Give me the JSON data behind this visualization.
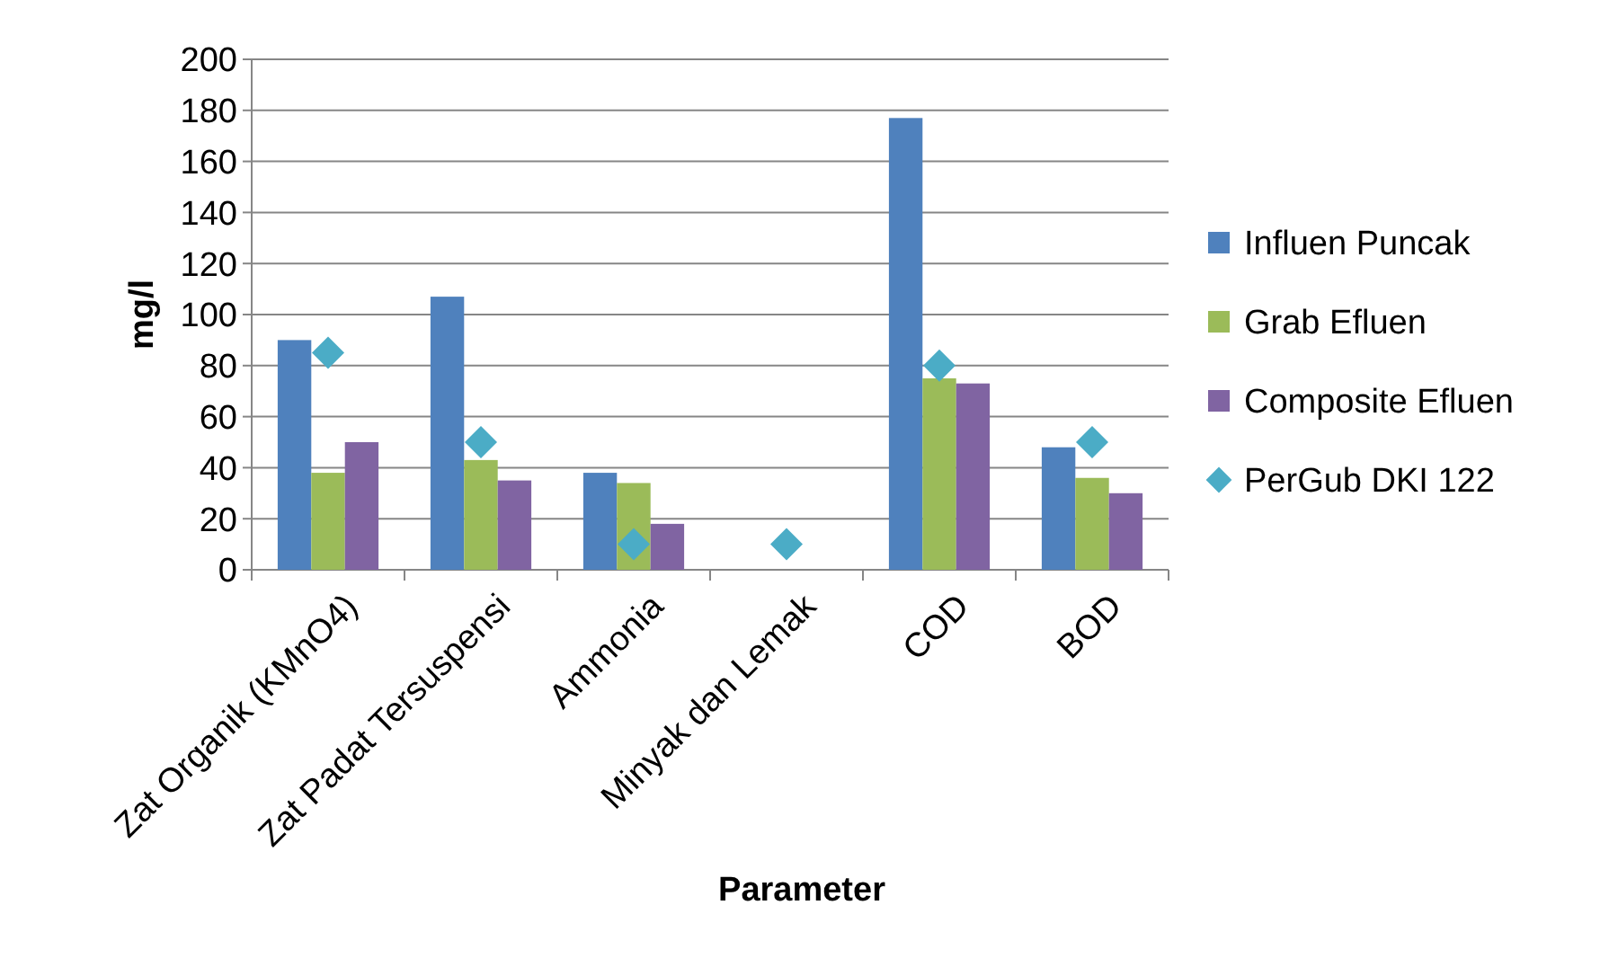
{
  "chart_data": {
    "type": "bar",
    "xlabel": "Parameter",
    "ylabel": "mg/l",
    "categories": [
      "Zat Organik (KMnO4)",
      "Zat Padat Tersuspensi",
      "Ammonia",
      "Minyak dan Lemak",
      "COD",
      "BOD"
    ],
    "series": [
      {
        "name": "Influen Puncak",
        "color": "#4f81bd",
        "values": [
          90,
          107,
          38,
          null,
          177,
          48
        ]
      },
      {
        "name": "Grab Efluen",
        "color": "#9bbb59",
        "values": [
          38,
          43,
          34,
          null,
          75,
          36
        ]
      },
      {
        "name": "Composite Efluen",
        "color": "#8064a2",
        "values": [
          50,
          35,
          18,
          null,
          73,
          30
        ]
      },
      {
        "name": "PerGub DKI 122",
        "type": "scatter",
        "color": "#4bacc6",
        "x": [
          "Zat Organik (KMnO4)",
          "Zat Padat Tersuspensi",
          "Ammonia",
          "Minyak dan Lemak",
          "COD",
          "BOD"
        ],
        "values": [
          85,
          50,
          10,
          10,
          80,
          50
        ]
      }
    ],
    "ylim": [
      0,
      200
    ],
    "yticks": [
      0,
      20,
      40,
      60,
      80,
      100,
      120,
      140,
      160,
      180,
      200
    ],
    "grid": "y",
    "legend": "right",
    "marker": "diamond"
  }
}
